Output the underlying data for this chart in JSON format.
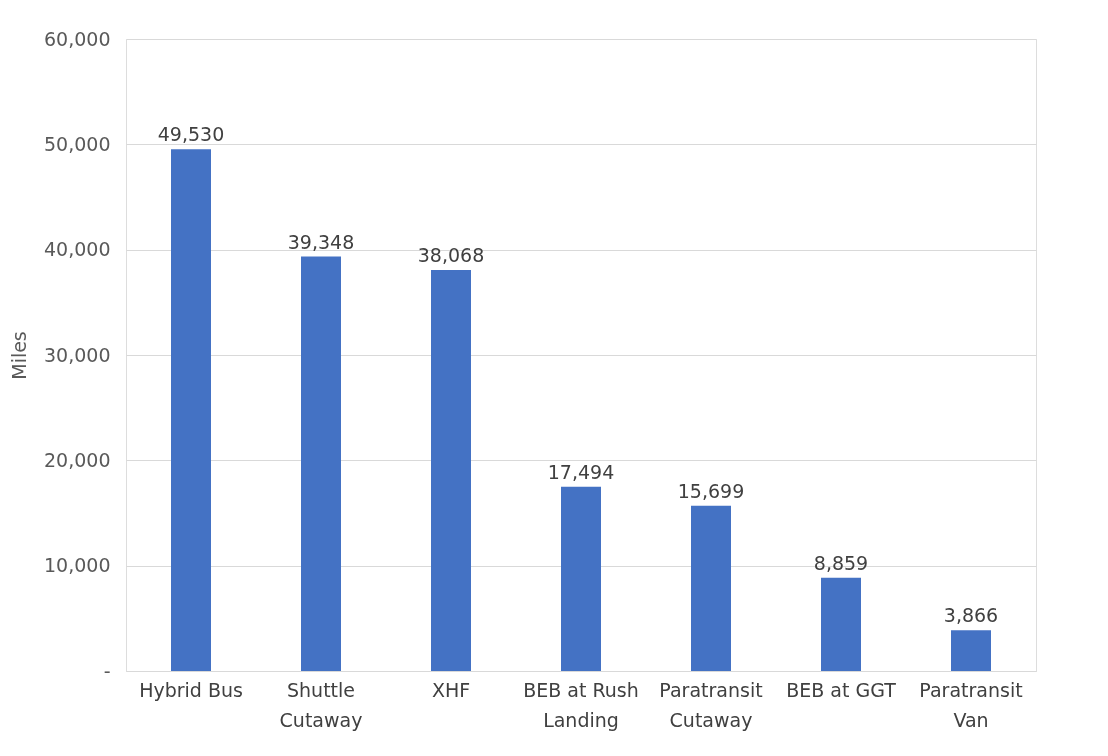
{
  "chart_data": {
    "type": "bar",
    "ylabel": "Miles",
    "categories": [
      "Hybrid Bus",
      "Shuttle Cutaway",
      "XHF",
      "BEB at Rush Landing",
      "Paratransit Cutaway",
      "BEB at GGT",
      "Paratransit Van"
    ],
    "values": [
      49530,
      39348,
      38068,
      17494,
      15699,
      8859,
      3866
    ],
    "value_labels": [
      "49,530",
      "39,348",
      "38,068",
      "17,494",
      "15,699",
      "8,859",
      "3,866"
    ],
    "color": "#4472c4",
    "ylim": [
      0,
      60000
    ],
    "yticks": [
      {
        "value": 0,
        "label": "-"
      },
      {
        "value": 10000,
        "label": "10,000"
      },
      {
        "value": 20000,
        "label": "20,000"
      },
      {
        "value": 30000,
        "label": "30,000"
      },
      {
        "value": 40000,
        "label": "40,000"
      },
      {
        "value": 50000,
        "label": "50,000"
      },
      {
        "value": 60000,
        "label": "60,000"
      }
    ],
    "grid": "y"
  }
}
